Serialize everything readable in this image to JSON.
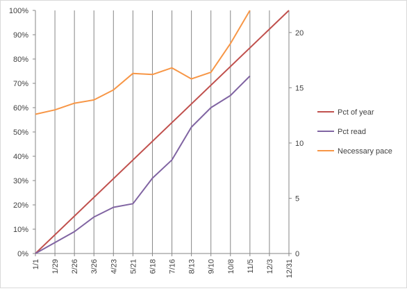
{
  "chart_data": {
    "type": "line",
    "title": "",
    "xlabel": "",
    "ylabel": "",
    "x_categories": [
      "1/1",
      "1/29",
      "2/26",
      "3/26",
      "4/23",
      "5/21",
      "6/18",
      "7/16",
      "8/13",
      "9/10",
      "10/8",
      "11/5",
      "12/3",
      "12/31"
    ],
    "y_left": {
      "min": 0,
      "max": 1,
      "step": 0.1,
      "tick_labels": [
        "0%",
        "10%",
        "20%",
        "30%",
        "40%",
        "50%",
        "60%",
        "70%",
        "80%",
        "90%",
        "100%"
      ]
    },
    "y_right": {
      "min": 0,
      "max": 22,
      "ticks": [
        0,
        5,
        10,
        15,
        20
      ],
      "tick_labels": [
        "0",
        "5",
        "10",
        "15",
        "20"
      ]
    },
    "grid": "vertical lines at each date",
    "legend_position": "right",
    "series": [
      {
        "name": "Pct of year",
        "color": "#c0504d",
        "axis": "left",
        "x": [
          "1/1",
          "12/31"
        ],
        "values": [
          0.0,
          1.0
        ]
      },
      {
        "name": "Pct read",
        "color": "#8064a2",
        "axis": "left",
        "x": [
          "1/1",
          "1/29",
          "2/26",
          "3/26",
          "4/23",
          "5/21",
          "6/18",
          "7/16",
          "8/13",
          "9/10",
          "10/8",
          "11/5"
        ],
        "values": [
          0.0,
          0.045,
          0.09,
          0.15,
          0.19,
          0.205,
          0.31,
          0.385,
          0.52,
          0.6,
          0.65,
          0.73
        ]
      },
      {
        "name": "Necessary pace",
        "color": "#f79646",
        "axis": "right",
        "x": [
          "1/1",
          "1/29",
          "2/26",
          "3/26",
          "4/23",
          "5/21",
          "6/18",
          "7/16",
          "8/13",
          "9/10",
          "10/8",
          "11/5"
        ],
        "values": [
          12.6,
          13.0,
          13.6,
          13.9,
          14.8,
          16.3,
          16.2,
          16.8,
          15.8,
          16.4,
          19.0,
          22.0
        ]
      }
    ]
  }
}
